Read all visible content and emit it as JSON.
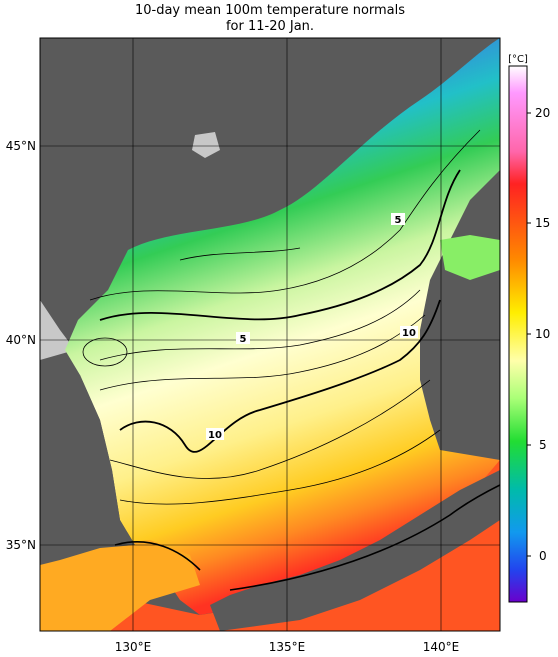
{
  "title": {
    "line1": "10-day mean 100m temperature normals",
    "line2": "for 11-20 Jan."
  },
  "map": {
    "lat_labels": [
      "45°N",
      "40°N",
      "35°N"
    ],
    "lon_labels": [
      "130°E",
      "135°E",
      "140°E"
    ],
    "contour_labels": [
      "5",
      "5",
      "10",
      "10"
    ],
    "land_color": "#5a5a5a",
    "coast_color": "#c8c8c8"
  },
  "colorbar": {
    "unit": "[°C]",
    "ticks": [
      "20",
      "15",
      "10",
      "5",
      "0"
    ],
    "colors": [
      "#ff88ff",
      "#ff2222",
      "#ff8800",
      "#ffff00",
      "#ffffaa",
      "#88ff44",
      "#00dd44",
      "#00bbbb",
      "#0055ff",
      "#6600cc"
    ]
  }
}
